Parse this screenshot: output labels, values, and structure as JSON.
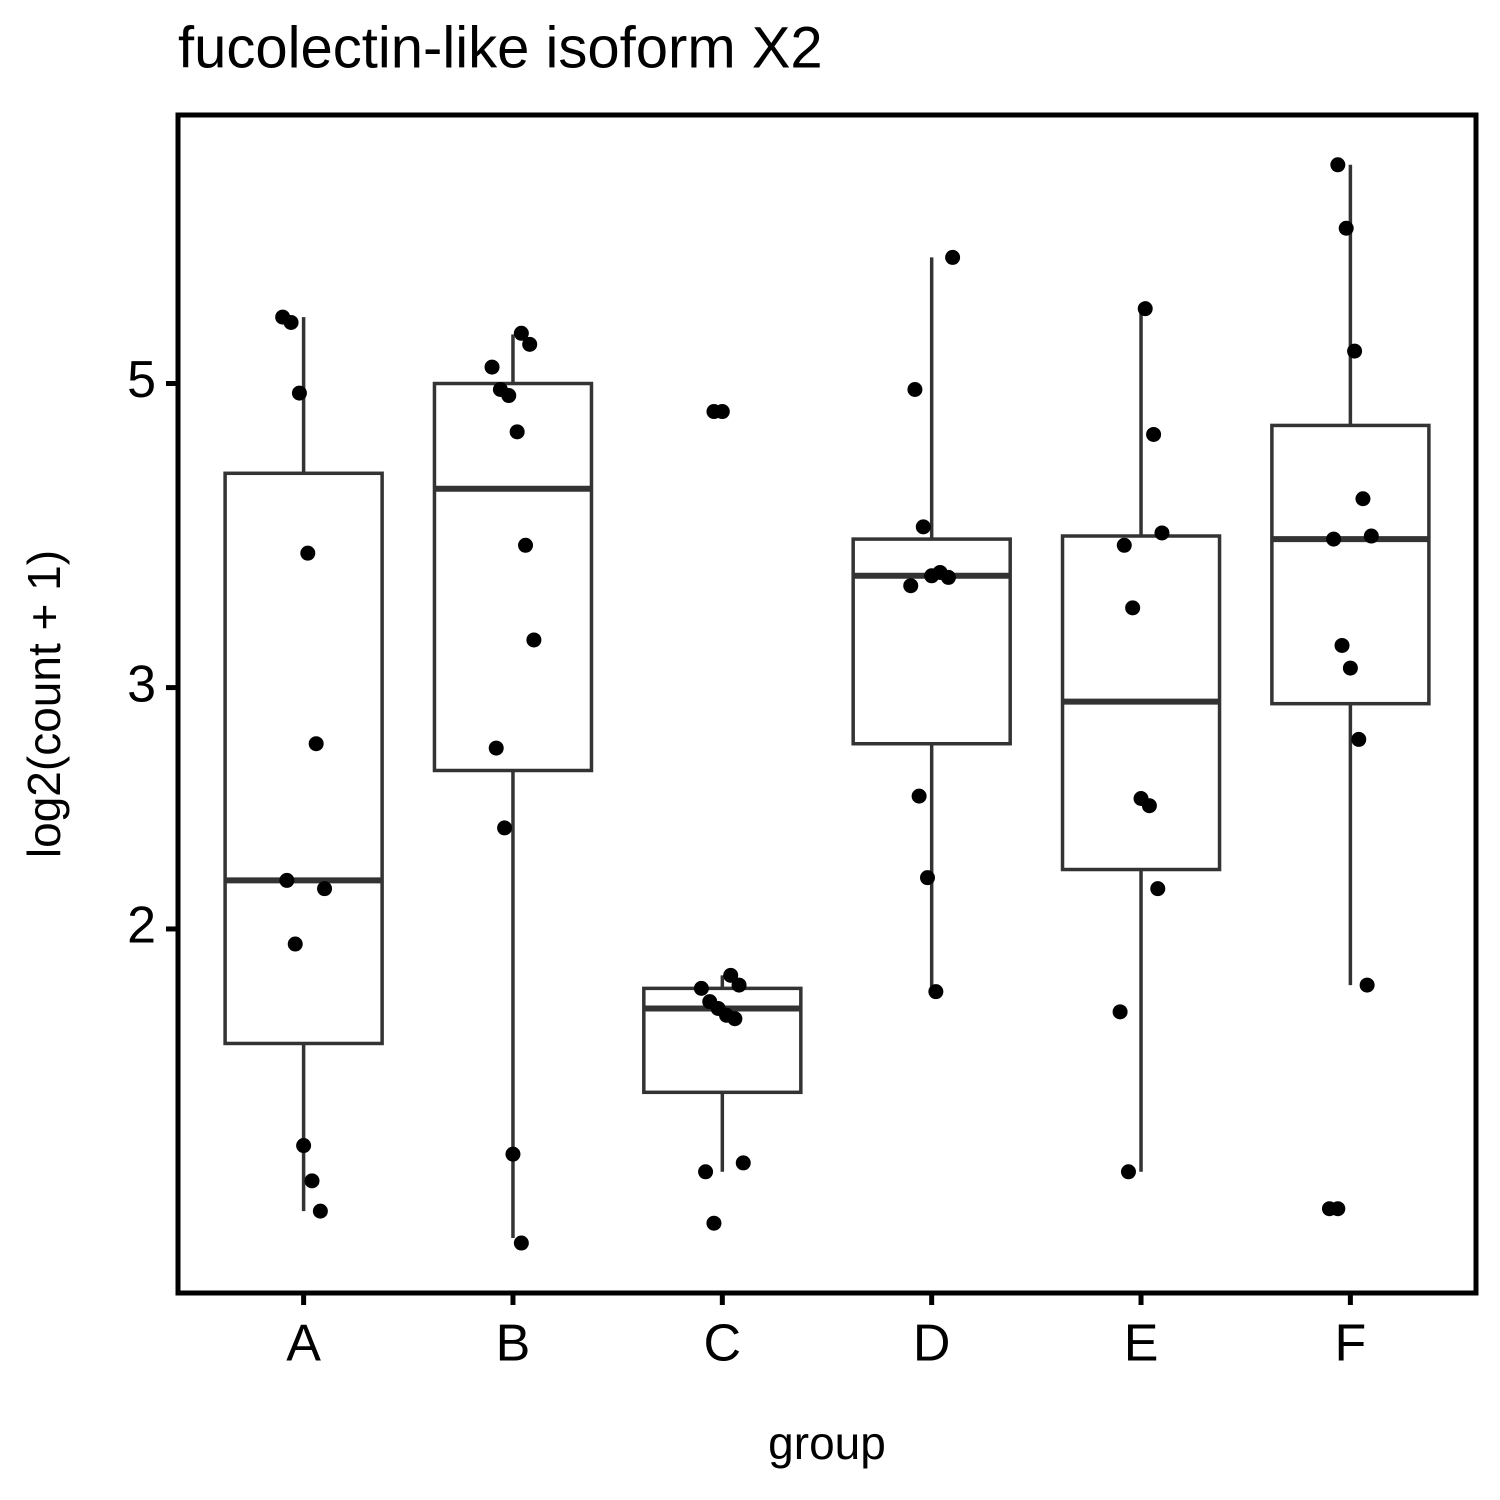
{
  "chart_data": {
    "type": "box",
    "title": "fucolectin-like isoform X2",
    "xlabel": "group",
    "ylabel": "log2(count + 1)",
    "categories": [
      "A",
      "B",
      "C",
      "D",
      "E",
      "F"
    ],
    "whisker_low": [
      1.245,
      1.19,
      1.33,
      1.8,
      1.33,
      1.82
    ],
    "q1": [
      1.65,
      2.61,
      1.52,
      2.73,
      2.21,
      2.92
    ],
    "median": [
      2.17,
      4.19,
      1.75,
      3.62,
      2.93,
      3.85
    ],
    "q3": [
      4.3,
      5.0,
      1.81,
      3.85,
      3.87,
      4.66
    ],
    "whisker_high": [
      5.59,
      5.43,
      1.85,
      6.18,
      5.67,
      7.22
    ],
    "points": [
      [
        5.59,
        5.54,
        4.92,
        3.76,
        2.73,
        2.14,
        2.17,
        1.95,
        1.39,
        1.31,
        1.245
      ],
      [
        5.44,
        5.34,
        5.14,
        4.95,
        4.9,
        4.61,
        3.81,
        3.25,
        2.71,
        2.37,
        1.37,
        1.18
      ],
      [
        4.77,
        4.77,
        1.85,
        1.82,
        1.81,
        1.77,
        1.75,
        1.73,
        1.72,
        1.35,
        1.33,
        1.22
      ],
      [
        6.18,
        4.95,
        3.93,
        3.62,
        3.64,
        3.61,
        3.56,
        2.5,
        2.18,
        1.8
      ],
      [
        5.67,
        4.59,
        3.89,
        3.81,
        3.43,
        2.49,
        2.46,
        2.14,
        1.74,
        1.33
      ],
      [
        7.22,
        6.49,
        5.28,
        4.12,
        3.87,
        3.85,
        3.22,
        3.1,
        2.75,
        1.82,
        1.25,
        1.25
      ]
    ],
    "ylim": [
      1.085,
      7.85
    ],
    "yticks": [
      2,
      3,
      5
    ],
    "log_scale": true,
    "grid": false,
    "box_color": "#333333",
    "point_color": "#000000"
  }
}
